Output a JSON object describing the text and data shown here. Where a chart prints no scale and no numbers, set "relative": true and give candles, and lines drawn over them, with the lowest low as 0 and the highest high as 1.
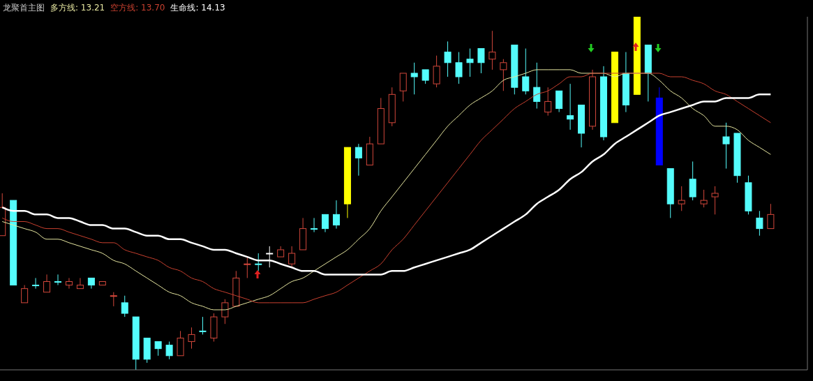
{
  "chart_data": {
    "type": "candlestick",
    "title": "龙聚首主图",
    "relative": true,
    "legend": "top left",
    "categories": [
      null,
      null,
      null,
      null,
      null,
      null,
      null,
      null,
      null,
      null,
      null,
      null,
      null,
      null,
      null,
      null,
      null,
      null,
      null,
      null,
      null,
      null,
      null,
      null,
      null,
      null,
      null,
      null,
      null,
      null,
      null,
      null,
      null,
      null,
      null,
      null,
      null,
      null,
      null,
      null,
      null,
      null,
      null,
      null,
      null,
      null,
      null,
      null,
      null,
      null,
      null,
      null,
      null,
      null,
      null,
      null,
      null,
      null,
      null,
      null,
      null,
      null,
      null,
      null,
      null,
      null,
      null,
      null,
      null,
      null
    ],
    "ohlc": [
      [
        0.38,
        0.5,
        0.38,
        0.46
      ],
      [
        0.48,
        0.48,
        0.24,
        0.24
      ],
      [
        0.19,
        0.24,
        0.19,
        0.23
      ],
      [
        0.24,
        0.26,
        0.23,
        0.24
      ],
      [
        0.22,
        0.27,
        0.22,
        0.25
      ],
      [
        0.25,
        0.27,
        0.24,
        0.25
      ],
      [
        0.24,
        0.26,
        0.23,
        0.25
      ],
      [
        0.23,
        0.26,
        0.23,
        0.24
      ],
      [
        0.26,
        0.26,
        0.23,
        0.24
      ],
      [
        0.24,
        0.25,
        0.24,
        0.25
      ],
      [
        0.21,
        0.22,
        0.18,
        0.21
      ],
      [
        0.19,
        0.21,
        0.15,
        0.16
      ],
      [
        0.15,
        0.15,
        0.0,
        0.03
      ],
      [
        0.09,
        0.09,
        0.02,
        0.03
      ],
      [
        0.08,
        0.08,
        0.04,
        0.06
      ],
      [
        0.07,
        0.08,
        0.03,
        0.04
      ],
      [
        0.04,
        0.11,
        0.04,
        0.09
      ],
      [
        0.08,
        0.12,
        0.06,
        0.1
      ],
      [
        0.11,
        0.15,
        0.1,
        0.11
      ],
      [
        0.09,
        0.16,
        0.08,
        0.15
      ],
      [
        0.15,
        0.2,
        0.13,
        0.19
      ],
      [
        0.18,
        0.28,
        0.18,
        0.26
      ],
      [
        0.3,
        0.32,
        0.26,
        0.3
      ],
      [
        0.3,
        0.33,
        0.28,
        0.3
      ],
      [
        0.33,
        0.35,
        0.29,
        0.33
      ],
      [
        0.32,
        0.35,
        0.32,
        0.34
      ],
      [
        0.3,
        0.35,
        0.29,
        0.33
      ],
      [
        0.34,
        0.43,
        0.34,
        0.4
      ],
      [
        0.4,
        0.43,
        0.39,
        0.4
      ],
      [
        0.44,
        0.44,
        0.39,
        0.4
      ],
      [
        0.44,
        0.48,
        0.4,
        0.41
      ],
      [
        0.47,
        0.63,
        0.43,
        0.63
      ],
      [
        0.63,
        0.64,
        0.55,
        0.6
      ],
      [
        0.58,
        0.66,
        0.58,
        0.64
      ],
      [
        0.64,
        0.77,
        0.64,
        0.74
      ],
      [
        0.7,
        0.8,
        0.69,
        0.78
      ],
      [
        0.79,
        0.84,
        0.76,
        0.84
      ],
      [
        0.84,
        0.87,
        0.78,
        0.83
      ],
      [
        0.85,
        0.85,
        0.81,
        0.82
      ],
      [
        0.81,
        0.89,
        0.8,
        0.86
      ],
      [
        0.9,
        0.93,
        0.83,
        0.87
      ],
      [
        0.87,
        0.9,
        0.81,
        0.83
      ],
      [
        0.88,
        0.91,
        0.83,
        0.87
      ],
      [
        0.91,
        0.91,
        0.84,
        0.87
      ],
      [
        0.88,
        0.96,
        0.85,
        0.9
      ],
      [
        0.85,
        0.88,
        0.79,
        0.87
      ],
      [
        0.92,
        0.92,
        0.78,
        0.8
      ],
      [
        0.83,
        0.91,
        0.78,
        0.79
      ],
      [
        0.8,
        0.87,
        0.74,
        0.76
      ],
      [
        0.73,
        0.8,
        0.72,
        0.76
      ],
      [
        0.79,
        0.79,
        0.73,
        0.74
      ],
      [
        0.72,
        0.81,
        0.68,
        0.71
      ],
      [
        0.75,
        0.75,
        0.63,
        0.67
      ],
      [
        0.69,
        0.85,
        0.68,
        0.83
      ],
      [
        0.83,
        0.86,
        0.65,
        0.66
      ],
      [
        0.7,
        0.9,
        0.7,
        0.9
      ],
      [
        0.84,
        0.9,
        0.73,
        0.75
      ],
      [
        0.78,
        1.0,
        0.78,
        1.0
      ],
      [
        0.92,
        0.92,
        0.76,
        0.84
      ],
      [
        0.77,
        0.8,
        0.58,
        0.58
      ],
      [
        0.57,
        0.57,
        0.43,
        0.47
      ],
      [
        0.47,
        0.52,
        0.45,
        0.48
      ],
      [
        0.54,
        0.59,
        0.48,
        0.49
      ],
      [
        0.47,
        0.51,
        0.46,
        0.48
      ],
      [
        0.49,
        0.52,
        0.44,
        0.5
      ],
      [
        0.66,
        0.7,
        0.57,
        0.64
      ],
      [
        0.67,
        0.67,
        0.53,
        0.55
      ],
      [
        0.53,
        0.55,
        0.44,
        0.45
      ],
      [
        0.43,
        0.45,
        0.38,
        0.4
      ],
      [
        0.4,
        0.47,
        0.4,
        0.44
      ]
    ],
    "colors": [
      "#d2473b",
      "#54fcfc",
      "#d2473b",
      "#54fcfc",
      "#d2473b",
      "#54fcfc",
      "#d2473b",
      "#d2473b",
      "#54fcfc",
      "#d2473b",
      "#d2473b",
      "#54fcfc",
      "#54fcfc",
      "#54fcfc",
      "#54fcfc",
      "#54fcfc",
      "#d2473b",
      "#d2473b",
      "#54fcfc",
      "#d2473b",
      "#d2473b",
      "#d2473b",
      "#d2473b",
      "#54fcfc",
      "#ffffff",
      "#d2473b",
      "#d2473b",
      "#d2473b",
      "#54fcfc",
      "#54fcfc",
      "#54fcfc",
      "#ffff00",
      "#54fcfc",
      "#d2473b",
      "#d2473b",
      "#d2473b",
      "#d2473b",
      "#54fcfc",
      "#54fcfc",
      "#d2473b",
      "#54fcfc",
      "#54fcfc",
      "#54fcfc",
      "#54fcfc",
      "#d2473b",
      "#d2473b",
      "#54fcfc",
      "#54fcfc",
      "#54fcfc",
      "#d2473b",
      "#54fcfc",
      "#54fcfc",
      "#54fcfc",
      "#d2473b",
      "#54fcfc",
      "#ffff00",
      "#54fcfc",
      "#ffff00",
      "#54fcfc",
      "#0000ff",
      "#54fcfc",
      "#d2473b",
      "#54fcfc",
      "#d2473b",
      "#d2473b",
      "#54fcfc",
      "#54fcfc",
      "#54fcfc",
      "#54fcfc",
      "#d2473b"
    ],
    "series": [
      {
        "type": "line",
        "name": "多方线: 13.21",
        "color": "#e6e6a0",
        "values": [
          0.42,
          0.41,
          0.4,
          0.39,
          0.37,
          0.37,
          0.36,
          0.35,
          0.34,
          0.33,
          0.31,
          0.3,
          0.28,
          0.26,
          0.24,
          0.22,
          0.21,
          0.19,
          0.18,
          0.17,
          0.17,
          0.18,
          0.19,
          0.2,
          0.21,
          0.23,
          0.25,
          0.26,
          0.28,
          0.3,
          0.32,
          0.34,
          0.37,
          0.4,
          0.45,
          0.49,
          0.53,
          0.57,
          0.61,
          0.65,
          0.69,
          0.72,
          0.75,
          0.77,
          0.79,
          0.82,
          0.83,
          0.84,
          0.85,
          0.85,
          0.85,
          0.85,
          0.84,
          0.84,
          0.84,
          0.83,
          0.84,
          0.84,
          0.84,
          0.82,
          0.79,
          0.77,
          0.74,
          0.72,
          0.69,
          0.69,
          0.68,
          0.65,
          0.63,
          0.61
        ]
      },
      {
        "type": "line",
        "name": "空方线: 13.70",
        "color": "#c8402f",
        "values": [
          0.43,
          0.42,
          0.42,
          0.41,
          0.4,
          0.4,
          0.39,
          0.38,
          0.37,
          0.36,
          0.36,
          0.34,
          0.33,
          0.32,
          0.31,
          0.29,
          0.28,
          0.26,
          0.25,
          0.23,
          0.22,
          0.21,
          0.2,
          0.19,
          0.19,
          0.19,
          0.19,
          0.19,
          0.2,
          0.21,
          0.22,
          0.24,
          0.26,
          0.28,
          0.3,
          0.34,
          0.37,
          0.41,
          0.45,
          0.49,
          0.53,
          0.57,
          0.61,
          0.65,
          0.68,
          0.71,
          0.74,
          0.76,
          0.78,
          0.79,
          0.81,
          0.83,
          0.83,
          0.84,
          0.84,
          0.84,
          0.84,
          0.84,
          0.84,
          0.84,
          0.83,
          0.83,
          0.82,
          0.81,
          0.79,
          0.78,
          0.76,
          0.74,
          0.72,
          0.7
        ]
      },
      {
        "type": "line",
        "name": "生命线: 14.13",
        "color": "#ffffff",
        "values": [
          0.46,
          0.45,
          0.45,
          0.44,
          0.44,
          0.43,
          0.43,
          0.42,
          0.41,
          0.41,
          0.4,
          0.4,
          0.39,
          0.38,
          0.38,
          0.37,
          0.37,
          0.36,
          0.35,
          0.34,
          0.34,
          0.33,
          0.32,
          0.31,
          0.31,
          0.3,
          0.29,
          0.28,
          0.28,
          0.27,
          0.27,
          0.27,
          0.27,
          0.27,
          0.27,
          0.28,
          0.28,
          0.29,
          0.3,
          0.31,
          0.32,
          0.33,
          0.34,
          0.36,
          0.38,
          0.4,
          0.42,
          0.44,
          0.47,
          0.49,
          0.51,
          0.54,
          0.56,
          0.59,
          0.61,
          0.64,
          0.66,
          0.68,
          0.7,
          0.72,
          0.73,
          0.74,
          0.75,
          0.76,
          0.76,
          0.77,
          0.77,
          0.77,
          0.78,
          0.78
        ]
      }
    ]
  }
}
